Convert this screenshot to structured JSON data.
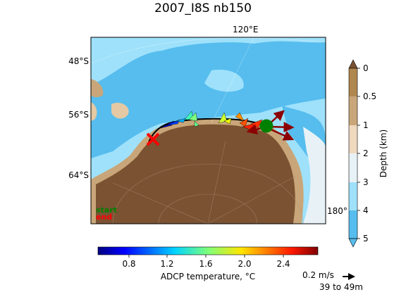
{
  "title": "2007_I8S nb150",
  "map": {
    "lat_labels": [
      "48°S",
      "56°S",
      "64°S"
    ],
    "lon_top_label": "120°E",
    "lon_right_label": "180°",
    "start_label": "start",
    "end_label": "end",
    "colors": {
      "deep_ocean": "#56bdee",
      "mid_ocean": "#9fe1fb",
      "shelf": "#e8f2f6",
      "land_brown": "#7b5232",
      "land_tan": "#c9a679",
      "track": "#000000",
      "start_marker": "#008000",
      "end_marker": "#ff0000"
    }
  },
  "depth_colorbar": {
    "label": "Depth (km)",
    "ticks": [
      "0",
      "0.5",
      "1",
      "2",
      "3",
      "4",
      "5"
    ]
  },
  "temp_colorbar": {
    "label": "ADCP temperature, °C",
    "ticks": [
      "0.8",
      "1.2",
      "1.6",
      "2.0",
      "2.4"
    ]
  },
  "legend": {
    "speed_label": "0.2 m/s",
    "depth_range_label": "39 to 49m"
  }
}
